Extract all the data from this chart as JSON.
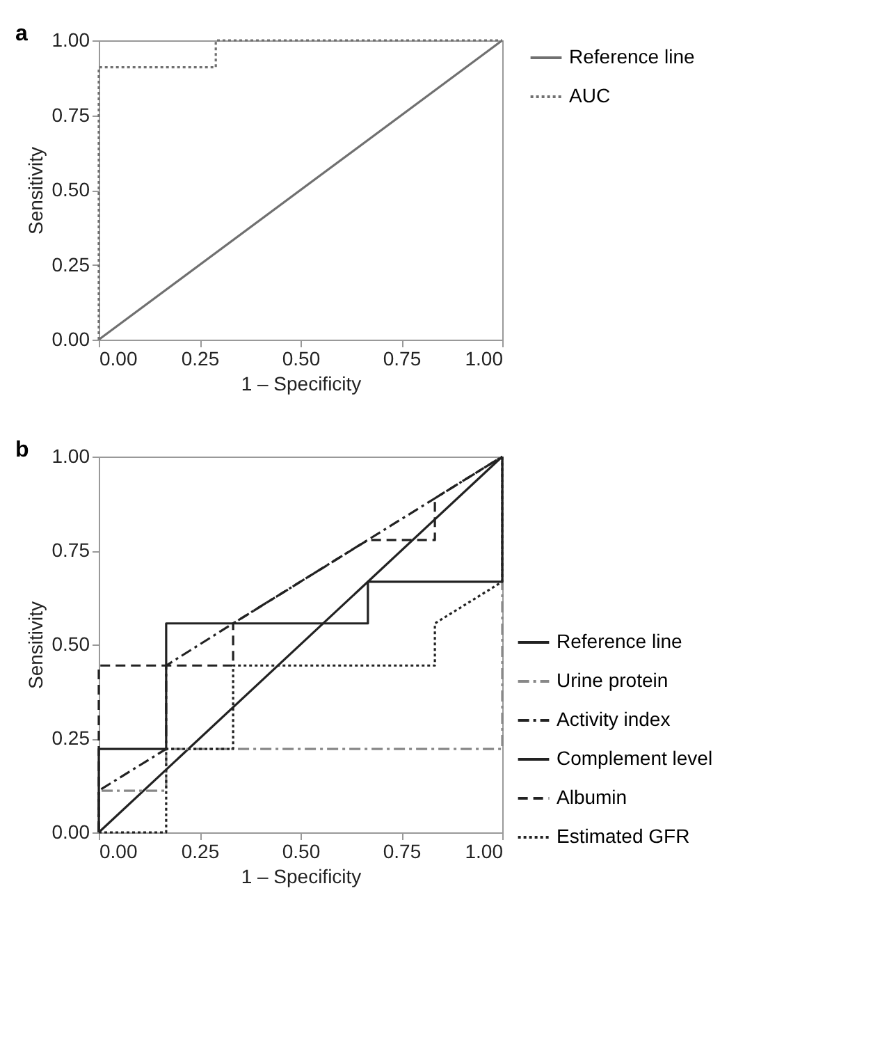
{
  "chart_data": [
    {
      "type": "line",
      "title": "a",
      "xlabel": "1 – Specificity",
      "ylabel": "Sensitivity",
      "xlim": [
        0,
        1
      ],
      "ylim": [
        0,
        1
      ],
      "xticks": [
        {
          "value": 0,
          "label": "0.00"
        },
        {
          "value": 0.25,
          "label": "0.25"
        },
        {
          "value": 0.5,
          "label": "0.50"
        },
        {
          "value": 0.75,
          "label": "0.75"
        },
        {
          "value": 1,
          "label": "1.00"
        }
      ],
      "yticks": [
        {
          "value": 0,
          "label": "0.00"
        },
        {
          "value": 0.25,
          "label": "0.25"
        },
        {
          "value": 0.5,
          "label": "0.50"
        },
        {
          "value": 0.75,
          "label": "0.75"
        },
        {
          "value": 1,
          "label": "1.00"
        }
      ],
      "grid": false,
      "legend": "right",
      "series": [
        {
          "name": "Reference line",
          "color": "#707070",
          "line_style": "solid",
          "x": [
            0,
            1
          ],
          "values": [
            0,
            1
          ]
        },
        {
          "name": "AUC",
          "color": "#707070",
          "line_style": "dotted",
          "x": [
            0,
            0,
            0.29,
            0.29,
            1
          ],
          "values": [
            0,
            0.91,
            0.91,
            1,
            1
          ]
        }
      ]
    },
    {
      "type": "line",
      "title": "b",
      "xlabel": "1 – Specificity",
      "ylabel": "Sensitivity",
      "xlim": [
        0,
        1
      ],
      "ylim": [
        0,
        1
      ],
      "xticks": [
        {
          "value": 0,
          "label": "0.00"
        },
        {
          "value": 0.25,
          "label": "0.25"
        },
        {
          "value": 0.5,
          "label": "0.50"
        },
        {
          "value": 0.75,
          "label": "0.75"
        },
        {
          "value": 1,
          "label": "1.00"
        }
      ],
      "yticks": [
        {
          "value": 0,
          "label": "0.00"
        },
        {
          "value": 0.25,
          "label": "0.25"
        },
        {
          "value": 0.5,
          "label": "0.50"
        },
        {
          "value": 0.75,
          "label": "0.75"
        },
        {
          "value": 1,
          "label": "1.00"
        }
      ],
      "grid": false,
      "legend": "bottom right",
      "series": [
        {
          "name": "Reference line",
          "color": "#222222",
          "line_style": "solid",
          "x": [
            0,
            1
          ],
          "values": [
            0,
            1
          ]
        },
        {
          "name": "Urine protein",
          "color": "#888888",
          "line_style": "dashdot",
          "x": [
            0,
            0,
            0.167,
            0.167,
            1,
            1
          ],
          "values": [
            0,
            0.111,
            0.111,
            0.222,
            0.222,
            1
          ]
        },
        {
          "name": "Activity index",
          "color": "#222222",
          "line_style": "dashdot",
          "x": [
            0,
            0,
            0.167,
            0.167,
            0.333,
            1
          ],
          "values": [
            0,
            0.111,
            0.222,
            0.444,
            0.556,
            1
          ]
        },
        {
          "name": "Complement level",
          "color": "#222222",
          "line_style": "solid",
          "x": [
            0,
            0,
            0.167,
            0.167,
            0.667,
            0.667,
            1,
            1
          ],
          "values": [
            0,
            0.222,
            0.222,
            0.556,
            0.556,
            0.667,
            0.667,
            1
          ]
        },
        {
          "name": "Albumin",
          "color": "#222222",
          "line_style": "dashed",
          "x": [
            0,
            0,
            0.333,
            0.333,
            0.667,
            0.833,
            0.833,
            1
          ],
          "values": [
            0,
            0.444,
            0.444,
            0.556,
            0.778,
            0.778,
            0.889,
            1
          ]
        },
        {
          "name": "Estimated GFR",
          "color": "#222222",
          "line_style": "dotted",
          "x": [
            0,
            0.167,
            0.167,
            0.333,
            0.333,
            0.833,
            0.833,
            1,
            1
          ],
          "values": [
            0,
            0,
            0.222,
            0.222,
            0.444,
            0.444,
            0.556,
            0.667,
            1
          ]
        }
      ]
    }
  ]
}
